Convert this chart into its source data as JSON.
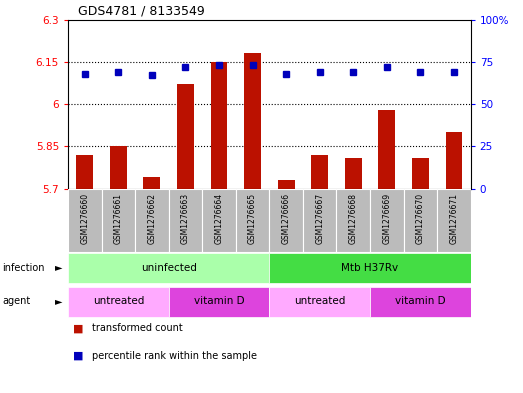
{
  "title": "GDS4781 / 8133549",
  "samples": [
    "GSM1276660",
    "GSM1276661",
    "GSM1276662",
    "GSM1276663",
    "GSM1276664",
    "GSM1276665",
    "GSM1276666",
    "GSM1276667",
    "GSM1276668",
    "GSM1276669",
    "GSM1276670",
    "GSM1276671"
  ],
  "red_values": [
    5.82,
    5.85,
    5.74,
    6.07,
    6.15,
    6.18,
    5.73,
    5.82,
    5.81,
    5.98,
    5.81,
    5.9
  ],
  "blue_values": [
    68,
    69,
    67,
    72,
    73,
    73,
    68,
    69,
    69,
    72,
    69,
    69
  ],
  "ylim_left": [
    5.7,
    6.3
  ],
  "ylim_right": [
    0,
    100
  ],
  "yticks_left": [
    5.7,
    5.85,
    6.0,
    6.15,
    6.3
  ],
  "yticks_right": [
    0,
    25,
    50,
    75,
    100
  ],
  "ytick_labels_left": [
    "5.7",
    "5.85",
    "6",
    "6.15",
    "6.3"
  ],
  "ytick_labels_right": [
    "0",
    "25",
    "50",
    "75",
    "100%"
  ],
  "dotted_lines": [
    5.85,
    6.0,
    6.15
  ],
  "infection_row": [
    {
      "label": "uninfected",
      "start": 0,
      "end": 6,
      "color": "#aaffaa"
    },
    {
      "label": "Mtb H37Rv",
      "start": 6,
      "end": 12,
      "color": "#44dd44"
    }
  ],
  "agent_row": [
    {
      "label": "untreated",
      "start": 0,
      "end": 3,
      "color": "#ffaaff"
    },
    {
      "label": "vitamin D",
      "start": 3,
      "end": 6,
      "color": "#dd44dd"
    },
    {
      "label": "untreated",
      "start": 6,
      "end": 9,
      "color": "#ffaaff"
    },
    {
      "label": "vitamin D",
      "start": 9,
      "end": 12,
      "color": "#dd44dd"
    }
  ],
  "bar_color": "#BB1100",
  "dot_color": "#0000BB",
  "tick_bg_color": "#BBBBBB",
  "bar_base": 5.7,
  "legend_items": [
    {
      "color": "#BB1100",
      "label": "transformed count"
    },
    {
      "color": "#0000BB",
      "label": "percentile rank within the sample"
    }
  ],
  "fig_width": 5.23,
  "fig_height": 3.93,
  "fig_dpi": 100
}
